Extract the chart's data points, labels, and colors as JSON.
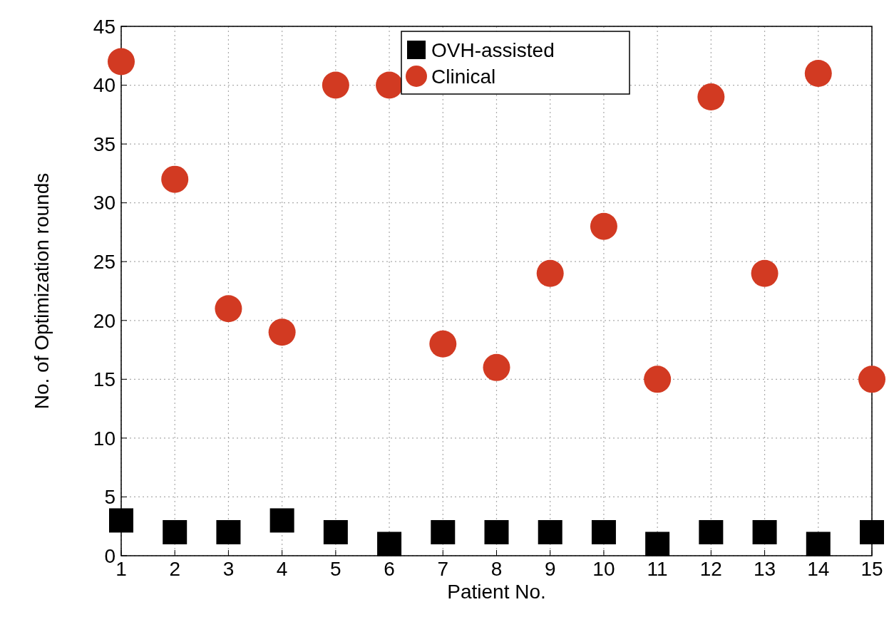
{
  "chart_data": {
    "type": "scatter",
    "xlabel": "Patient No.",
    "ylabel": "No. of Optimization rounds",
    "x": [
      1,
      2,
      3,
      4,
      5,
      6,
      7,
      8,
      9,
      10,
      11,
      12,
      13,
      14,
      15
    ],
    "series": [
      {
        "name": "OVH-assisted",
        "color": "#000000",
        "marker": "square",
        "values": [
          3,
          2,
          2,
          3,
          2,
          1,
          2,
          2,
          2,
          2,
          1,
          2,
          2,
          1,
          2
        ]
      },
      {
        "name": "Clinical",
        "color": "#d23a22",
        "marker": "circle",
        "values": [
          42,
          32,
          21,
          19,
          40,
          40,
          18,
          16,
          24,
          28,
          15,
          39,
          24,
          41,
          15
        ]
      }
    ],
    "xlim": [
      1,
      15
    ],
    "xticks": [
      1,
      2,
      3,
      4,
      5,
      6,
      7,
      8,
      9,
      10,
      11,
      12,
      13,
      14,
      15
    ],
    "ylim": [
      0,
      45
    ],
    "yticks": [
      0,
      5,
      10,
      15,
      20,
      25,
      30,
      35,
      40,
      45
    ],
    "grid": true,
    "line_style": "dotted",
    "legend": "top"
  }
}
